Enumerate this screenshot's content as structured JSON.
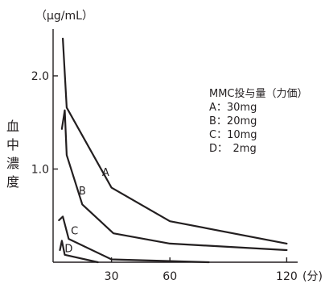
{
  "chart_data": {
    "type": "line",
    "yunit": "（µg/mL）",
    "ylabel": "血中濃度",
    "xunit": "(分)",
    "x_ticks": [
      30,
      60,
      120
    ],
    "x_tick_labels": [
      "30",
      "60",
      "120"
    ],
    "y_ticks": [
      1.0,
      2.0
    ],
    "y_tick_labels": [
      "1.0",
      "2.0"
    ],
    "xlim": [
      0,
      130
    ],
    "ylim": [
      0,
      2.55
    ],
    "legend_title": "MMC投与量（力価）",
    "series": [
      {
        "name": "A：30mg",
        "label": "A",
        "x": [
          5,
          7,
          30,
          60,
          120
        ],
        "y": [
          2.4,
          1.66,
          0.8,
          0.44,
          0.2
        ],
        "label_pos": [
          27,
          0.97
        ]
      },
      {
        "name": "B：20mg",
        "label": "B",
        "x": [
          4.5,
          6,
          7,
          15,
          31,
          60,
          120
        ],
        "y": [
          1.43,
          1.63,
          1.15,
          0.62,
          0.31,
          0.2,
          0.13
        ],
        "label_pos": [
          15,
          0.77
        ]
      },
      {
        "name": "C：10mg",
        "label": "C",
        "x": [
          3,
          5,
          8,
          30,
          80
        ],
        "y": [
          0.45,
          0.49,
          0.25,
          0.03,
          0.0
        ],
        "label_pos": [
          11,
          0.34
        ]
      },
      {
        "name": "D：　2mg",
        "label": "D",
        "x": [
          3.5,
          4.5,
          6,
          23
        ],
        "y": [
          0.13,
          0.23,
          0.08,
          0.0
        ],
        "label_pos": [
          8,
          0.15
        ]
      }
    ]
  }
}
